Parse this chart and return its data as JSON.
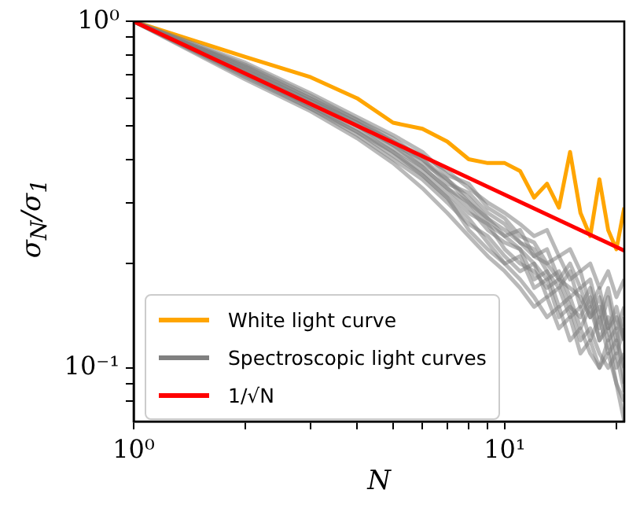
{
  "chart_data": {
    "type": "line",
    "xlabel": "N",
    "ylabel": "σ$_{N}$/σ$_{1}$",
    "log": "xy",
    "grid": false,
    "legend": "bottom left",
    "marker": "none",
    "line_style": "solid",
    "x": [
      1,
      2,
      3,
      4,
      5,
      6,
      7,
      8,
      9,
      10,
      11,
      12,
      13,
      14,
      15,
      16,
      17,
      18,
      19,
      20,
      21
    ],
    "xlim": [
      1,
      21
    ],
    "ylim": [
      0.07,
      1
    ],
    "xticks": [
      {
        "value": 1,
        "label": "10⁰"
      },
      {
        "value": 2,
        "label": null
      },
      {
        "value": 3,
        "label": null
      },
      {
        "value": 4,
        "label": null
      },
      {
        "value": 5,
        "label": null
      },
      {
        "value": 6,
        "label": null
      },
      {
        "value": 7,
        "label": null
      },
      {
        "value": 8,
        "label": null
      },
      {
        "value": 9,
        "label": null
      },
      {
        "value": 10,
        "label": "10¹"
      },
      {
        "value": 20,
        "label": null
      }
    ],
    "yticks": [
      {
        "value": 0.08,
        "label": null
      },
      {
        "value": 0.09,
        "label": null
      },
      {
        "value": 0.1,
        "label": "10⁻¹"
      },
      {
        "value": 0.2,
        "label": null
      },
      {
        "value": 0.3,
        "label": null
      },
      {
        "value": 0.4,
        "label": null
      },
      {
        "value": 0.5,
        "label": null
      },
      {
        "value": 0.6,
        "label": null
      },
      {
        "value": 0.7,
        "label": null
      },
      {
        "value": 0.8,
        "label": null
      },
      {
        "value": 0.9,
        "label": null
      },
      {
        "value": 1,
        "label": "10⁰"
      }
    ],
    "series": [
      {
        "name": "White light curve",
        "color": "#ffa500",
        "values": [
          1,
          0.79,
          0.69,
          0.6,
          0.51,
          0.49,
          0.45,
          0.4,
          0.39,
          0.39,
          0.37,
          0.31,
          0.34,
          0.29,
          0.42,
          0.28,
          0.24,
          0.35,
          0.25,
          0.22,
          0.29
        ]
      },
      {
        "name": "Spectroscopic light curves",
        "color": "#808080",
        "values": [
          1,
          0.74,
          0.6,
          0.52,
          0.45,
          0.41,
          0.37,
          0.33,
          0.3,
          0.28,
          0.26,
          0.24,
          0.25,
          0.21,
          0.22,
          0.19,
          0.2,
          0.17,
          0.19,
          0.16,
          0.18
        ]
      },
      {
        "color": "#808080",
        "values": [
          1,
          0.7,
          0.56,
          0.47,
          0.4,
          0.35,
          0.3,
          0.26,
          0.24,
          0.21,
          0.19,
          0.2,
          0.16,
          0.17,
          0.14,
          0.15,
          0.12,
          0.14,
          0.11,
          0.12,
          0.1
        ]
      },
      {
        "color": "#808080",
        "values": [
          1,
          0.72,
          0.58,
          0.5,
          0.43,
          0.38,
          0.33,
          0.29,
          0.25,
          0.23,
          0.22,
          0.18,
          0.19,
          0.15,
          0.16,
          0.13,
          0.15,
          0.12,
          0.13,
          0.1,
          0.11
        ]
      },
      {
        "color": "#808080",
        "values": [
          1,
          0.76,
          0.62,
          0.53,
          0.47,
          0.42,
          0.36,
          0.34,
          0.29,
          0.27,
          0.24,
          0.23,
          0.2,
          0.21,
          0.18,
          0.19,
          0.15,
          0.17,
          0.13,
          0.15,
          0.12
        ]
      },
      {
        "color": "#808080",
        "values": [
          1,
          0.68,
          0.55,
          0.46,
          0.39,
          0.33,
          0.28,
          0.24,
          0.21,
          0.19,
          0.17,
          0.15,
          0.16,
          0.13,
          0.14,
          0.11,
          0.12,
          0.1,
          0.11,
          0.09,
          0.08
        ]
      },
      {
        "color": "#808080",
        "values": [
          1,
          0.71,
          0.57,
          0.49,
          0.42,
          0.37,
          0.32,
          0.28,
          0.26,
          0.22,
          0.2,
          0.19,
          0.17,
          0.18,
          0.15,
          0.14,
          0.16,
          0.12,
          0.14,
          0.11,
          0.13
        ]
      },
      {
        "color": "#808080",
        "values": [
          1,
          0.73,
          0.59,
          0.51,
          0.44,
          0.4,
          0.35,
          0.31,
          0.27,
          0.25,
          0.23,
          0.21,
          0.22,
          0.18,
          0.17,
          0.16,
          0.14,
          0.15,
          0.12,
          0.13,
          0.09
        ]
      },
      {
        "color": "#808080",
        "values": [
          1,
          0.69,
          0.56,
          0.48,
          0.41,
          0.36,
          0.31,
          0.25,
          0.22,
          0.2,
          0.18,
          0.16,
          0.14,
          0.15,
          0.12,
          0.13,
          0.11,
          0.1,
          0.12,
          0.09,
          0.07
        ]
      },
      {
        "color": "#808080",
        "values": [
          1,
          0.75,
          0.61,
          0.52,
          0.46,
          0.4,
          0.34,
          0.32,
          0.28,
          0.26,
          0.23,
          0.22,
          0.19,
          0.17,
          0.19,
          0.15,
          0.17,
          0.13,
          0.16,
          0.12,
          0.14
        ]
      },
      {
        "color": "#808080",
        "values": [
          1,
          0.7,
          0.57,
          0.48,
          0.42,
          0.36,
          0.31,
          0.27,
          0.23,
          0.2,
          0.21,
          0.17,
          0.18,
          0.14,
          0.15,
          0.12,
          0.13,
          0.11,
          0.1,
          0.11,
          0.085
        ]
      },
      {
        "color": "#808080",
        "values": [
          1,
          0.72,
          0.59,
          0.5,
          0.44,
          0.38,
          0.33,
          0.3,
          0.26,
          0.24,
          0.22,
          0.2,
          0.18,
          0.19,
          0.16,
          0.17,
          0.14,
          0.16,
          0.13,
          0.14,
          0.12
        ]
      },
      {
        "color": "#808080",
        "values": [
          1,
          0.74,
          0.6,
          0.51,
          0.45,
          0.39,
          0.35,
          0.3,
          0.27,
          0.24,
          0.25,
          0.21,
          0.2,
          0.18,
          0.2,
          0.17,
          0.18,
          0.14,
          0.17,
          0.13,
          0.15
        ]
      },
      {
        "name": "1/√N",
        "color": "#ff0000",
        "x": [
          1,
          21
        ],
        "values": [
          1,
          0.218
        ]
      }
    ]
  }
}
